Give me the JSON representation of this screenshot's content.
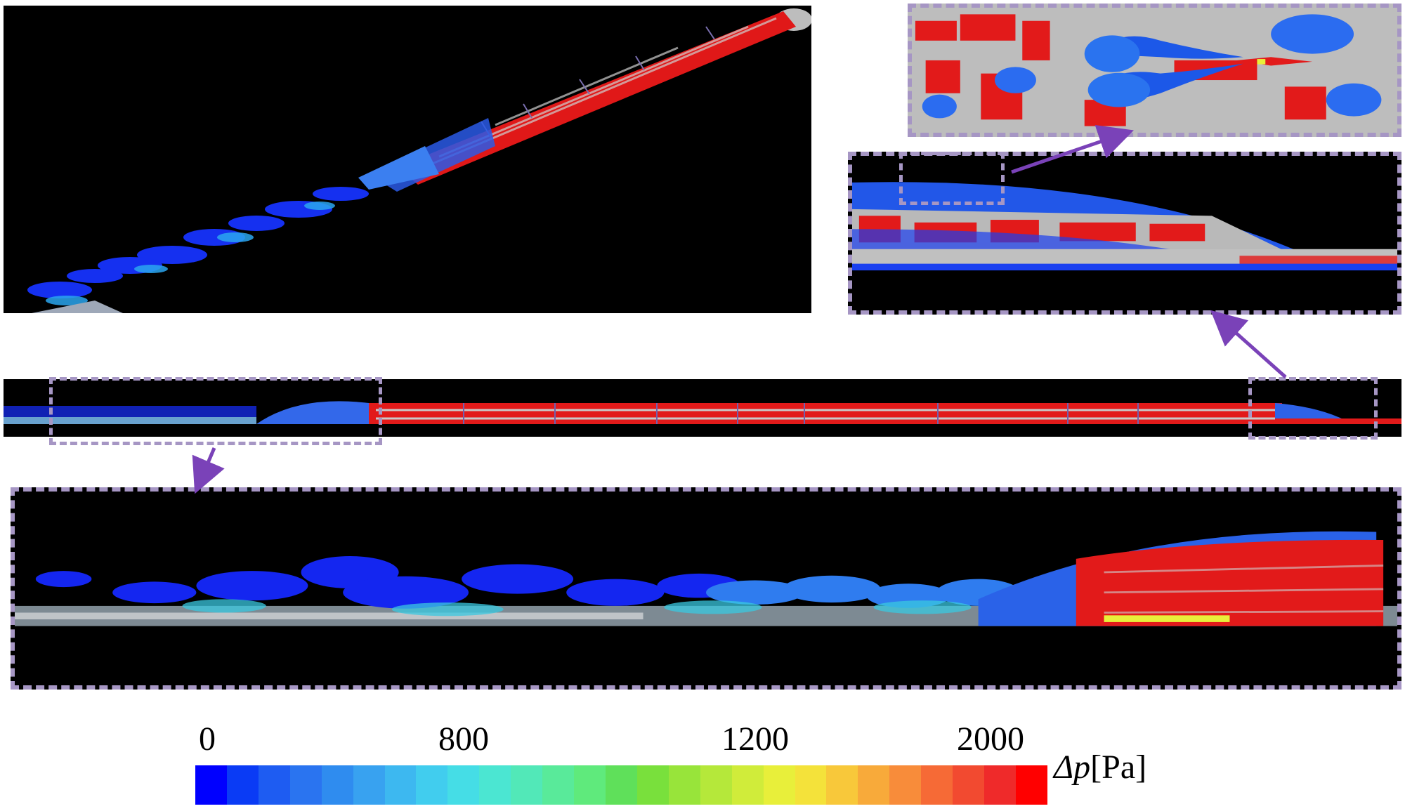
{
  "colorbar": {
    "ticks": [
      {
        "label": "0",
        "value": 0
      },
      {
        "label": "800",
        "value": 800
      },
      {
        "label": "1200",
        "value": 1200
      },
      {
        "label": "2000",
        "value": 2000
      }
    ],
    "symbol": "Δp",
    "unit": "[Pa]",
    "colors": [
      "#0000ff",
      "#0a3bf5",
      "#1e5cf2",
      "#2a74f0",
      "#2f8cef",
      "#38a2f0",
      "#3db8f0",
      "#41cdee",
      "#45dde6",
      "#4be6d2",
      "#52e8b8",
      "#59ea9a",
      "#5fea7c",
      "#5fe05a",
      "#79e03c",
      "#98e43a",
      "#b5e83a",
      "#d0ec3a",
      "#e8ef3a",
      "#f4e23a",
      "#f8c83a",
      "#f8aa3a",
      "#f88c3a",
      "#f66a36",
      "#f24a30",
      "#ef2a2a",
      "#ff0000"
    ]
  },
  "contour_colors": {
    "low": "#1a4ff0",
    "mid": "#3ad0e0",
    "high": "#ee1f1f",
    "body": "#b8b8b8"
  }
}
